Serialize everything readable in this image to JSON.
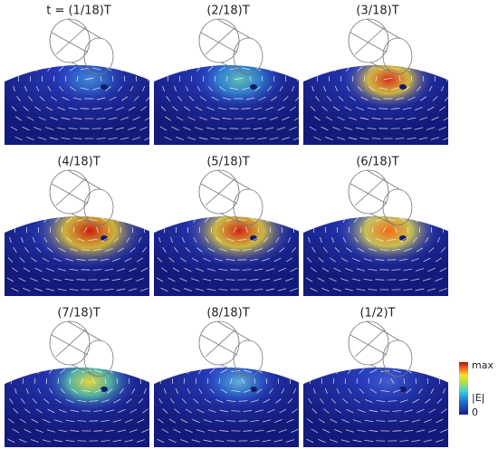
{
  "panels": [
    {
      "label": "t = (1/18)T"
    },
    {
      "label": "(2/18)T"
    },
    {
      "label": "(3/18)T"
    },
    {
      "label": "(4/18)T"
    },
    {
      "label": "(5/18)T"
    },
    {
      "label": "(6/18)T"
    },
    {
      "label": "(7/18)T"
    },
    {
      "label": "(8/18)T"
    },
    {
      "label": "(1/2)T"
    }
  ],
  "colorbar": {
    "max_label": "max",
    "quantity": "|E|",
    "min_label": "0"
  }
}
